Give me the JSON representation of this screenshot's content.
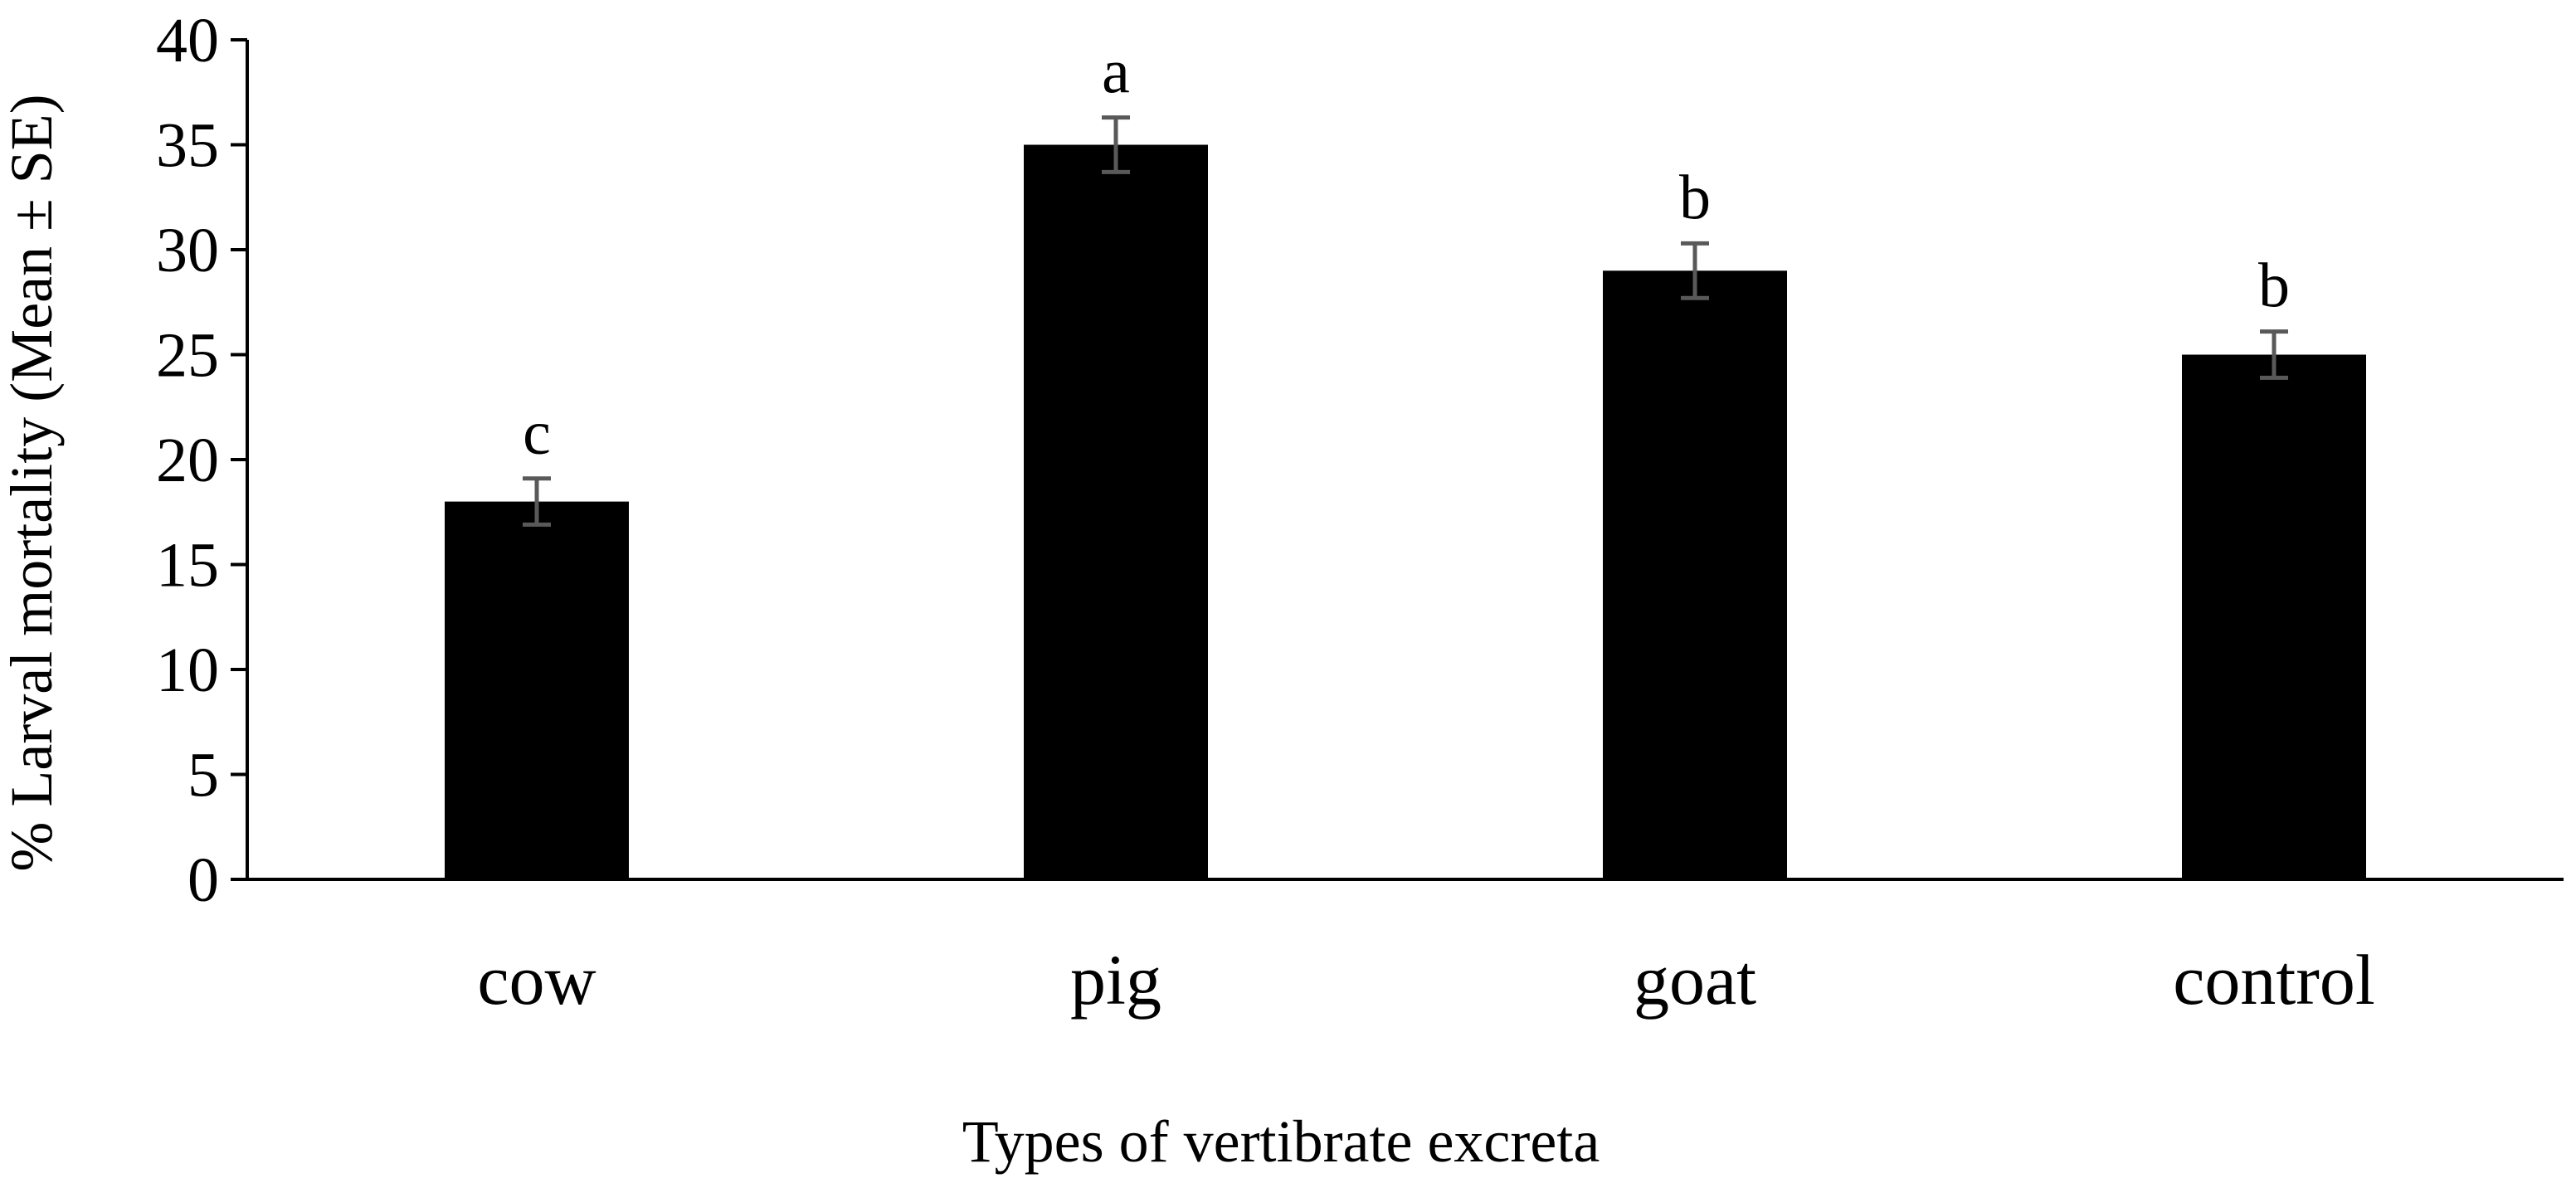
{
  "chart_data": {
    "type": "bar",
    "title": "",
    "xlabel": "Types of vertibrate excreta",
    "ylabel": "% Larval mortality (Mean ± SE)",
    "ylim": [
      0,
      40
    ],
    "yticks": [
      0,
      5,
      10,
      15,
      20,
      25,
      30,
      35,
      40
    ],
    "grid": false,
    "legend": "none",
    "categories": [
      "cow",
      "pig",
      "goat",
      "control"
    ],
    "values": [
      18,
      35,
      29,
      25
    ],
    "errors": [
      1.1,
      1.3,
      1.3,
      1.1
    ],
    "significance_letters": [
      "c",
      "a",
      "b",
      "b"
    ],
    "colors": {
      "bar": "#000000",
      "error_bar": "#595959",
      "axis": "#000000",
      "text": "#000000"
    }
  }
}
